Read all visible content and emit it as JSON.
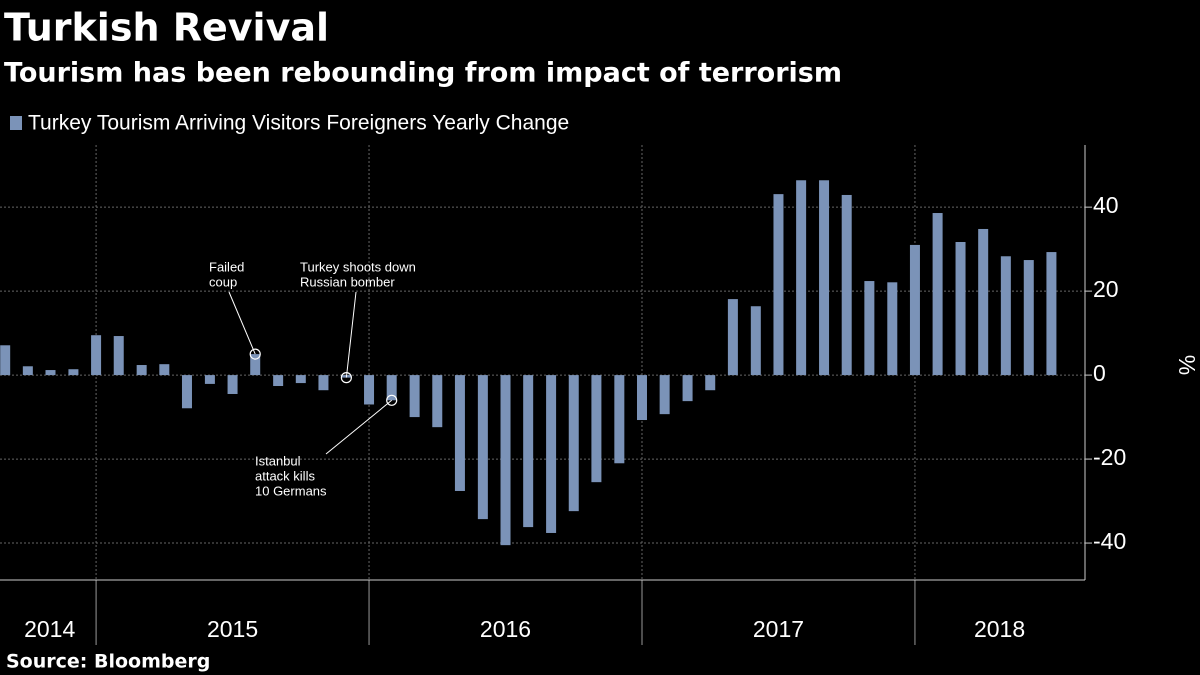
{
  "chart_data": {
    "type": "bar",
    "title": "Turkish Revival",
    "subtitle": "Tourism has been rebounding from impact of terrorism",
    "source": "Source: Bloomberg",
    "y_axis_label": "%",
    "series": [
      {
        "name": "Turkey Tourism Arriving Visitors Foreigners Yearly Change",
        "color": "#7b93b8",
        "x": [
          2014.667,
          2014.75,
          2014.833,
          2014.917,
          2015.0,
          2015.083,
          2015.167,
          2015.25,
          2015.333,
          2015.417,
          2015.5,
          2015.583,
          2015.667,
          2015.75,
          2015.833,
          2015.917,
          2016.0,
          2016.083,
          2016.167,
          2016.25,
          2016.333,
          2016.417,
          2016.5,
          2016.583,
          2016.667,
          2016.75,
          2016.833,
          2016.917,
          2017.0,
          2017.083,
          2017.167,
          2017.25,
          2017.333,
          2017.417,
          2017.5,
          2017.583,
          2017.667,
          2017.75,
          2017.833,
          2017.917,
          2018.0,
          2018.083,
          2018.167,
          2018.25,
          2018.333,
          2018.417,
          2018.5
        ],
        "values": [
          7.1,
          2.1,
          1.2,
          1.4,
          9.5,
          9.3,
          2.4,
          2.6,
          -7.9,
          -2.1,
          -4.5,
          5,
          -2.6,
          -1.9,
          -3.6,
          -0.6,
          -7,
          -6,
          -10,
          -12.4,
          -27.6,
          -34.3,
          -40.5,
          -36.2,
          -37.6,
          -32.4,
          -25.5,
          -21,
          -10.7,
          -9.3,
          -6.2,
          -3.6,
          18.1,
          16.4,
          43.1,
          46.4,
          46.4,
          42.9,
          22.4,
          22.1,
          31,
          38.6,
          31.7,
          34.8,
          28.3,
          27.4,
          29.3
        ]
      }
    ],
    "xlim": [
      2014.648,
      2018.623
    ],
    "xticks": [
      2015,
      2016,
      2017,
      2018
    ],
    "x_labels": [
      {
        "value": 2014.83,
        "label": "2014"
      },
      {
        "value": 2015.5,
        "label": "2015"
      },
      {
        "value": 2016.5,
        "label": "2016"
      },
      {
        "value": 2017.5,
        "label": "2017"
      },
      {
        "value": 2018.31,
        "label": "2018"
      }
    ],
    "ylim": [
      -48.8,
      54.8
    ],
    "yticks": [
      -40,
      -20,
      0,
      20,
      40
    ],
    "grid": true,
    "annotations": [
      {
        "text": [
          "Failed",
          "coup"
        ],
        "x": 2015.583,
        "y": 5
      },
      {
        "text": [
          "Turkey shoots down",
          "Russian bomber"
        ],
        "x": 2015.917,
        "y": -0.6
      },
      {
        "text": [
          "Istanbul",
          "attack kills",
          "10 Germans"
        ],
        "x": 2016.083,
        "y": -6
      }
    ]
  }
}
